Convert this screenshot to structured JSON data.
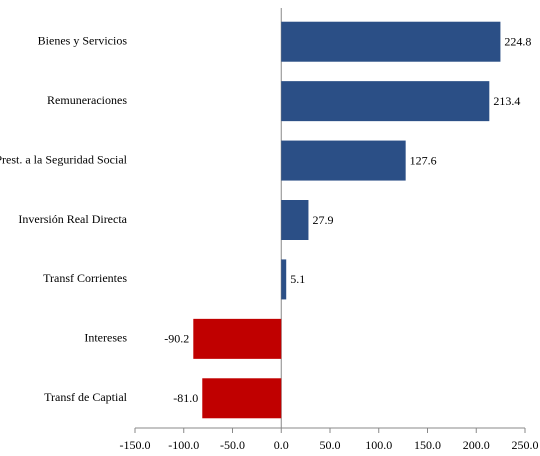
{
  "chart_data": {
    "type": "hbar",
    "categories": [
      "Bienes y Servicios",
      "Remuneraciones",
      "Prest. a la Seguridad Social",
      "Inversión Real Directa",
      "Transf Corrientes",
      "Intereses",
      "Transf de Captial"
    ],
    "values": [
      224.8,
      213.4,
      127.6,
      27.9,
      5.1,
      -90.2,
      -81.0
    ],
    "value_labels": [
      "224.8",
      "213.4",
      "127.6",
      "27.9",
      "5.1",
      "-90.2",
      "-81.0"
    ],
    "colors": [
      "#2b4f86",
      "#2b4f86",
      "#2b4f86",
      "#2b4f86",
      "#2b4f86",
      "#c00000",
      "#c00000"
    ],
    "xlim": [
      -150,
      250
    ],
    "xticks": [
      {
        "value": -150,
        "label": "-150.0"
      },
      {
        "value": -100,
        "label": "-100.0"
      },
      {
        "value": -50,
        "label": "-50.0"
      },
      {
        "value": 0,
        "label": "0.0"
      },
      {
        "value": 50,
        "label": "50.0"
      },
      {
        "value": 100,
        "label": "100.0"
      },
      {
        "value": 150,
        "label": "150.0"
      },
      {
        "value": 200,
        "label": "200.0"
      },
      {
        "value": 250,
        "label": "250.0"
      }
    ]
  }
}
